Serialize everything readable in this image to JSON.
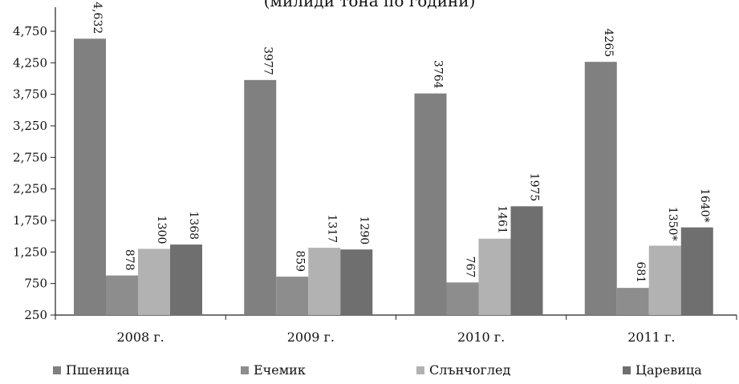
{
  "chart_data": {
    "type": "bar",
    "title": "(милиди тона по години)",
    "categories": [
      "2008 г.",
      "2009 г.",
      "2010 г.",
      "2011 г."
    ],
    "series": [
      {
        "name": "Пшеница",
        "color": "#808080",
        "values": [
          4632,
          3977,
          3764,
          4265
        ],
        "labels": [
          "4,632",
          "3977",
          "3764",
          "4265"
        ]
      },
      {
        "name": "Ечемик",
        "color": "#8d8d8d",
        "values": [
          878,
          859,
          767,
          681
        ],
        "labels": [
          "878",
          "859",
          "767",
          "681"
        ]
      },
      {
        "name": "Слънчоглед",
        "color": "#b2b2b2",
        "values": [
          1300,
          1317,
          1461,
          1350
        ],
        "labels": [
          "1300",
          "1317",
          "1461",
          "1350*"
        ]
      },
      {
        "name": "Царевица",
        "color": "#6f6f6f",
        "values": [
          1368,
          1290,
          1975,
          1640
        ],
        "labels": [
          "1368",
          "1290",
          "1975",
          "1640*"
        ]
      }
    ],
    "y_ticks": [
      "250",
      "750",
      "1,250",
      "1,750",
      "2,250",
      "2,750",
      "3,250",
      "3,750",
      "4,250",
      "4,750"
    ],
    "ylim": [
      250,
      4750
    ],
    "grid": false,
    "legend_position": "bottom"
  }
}
